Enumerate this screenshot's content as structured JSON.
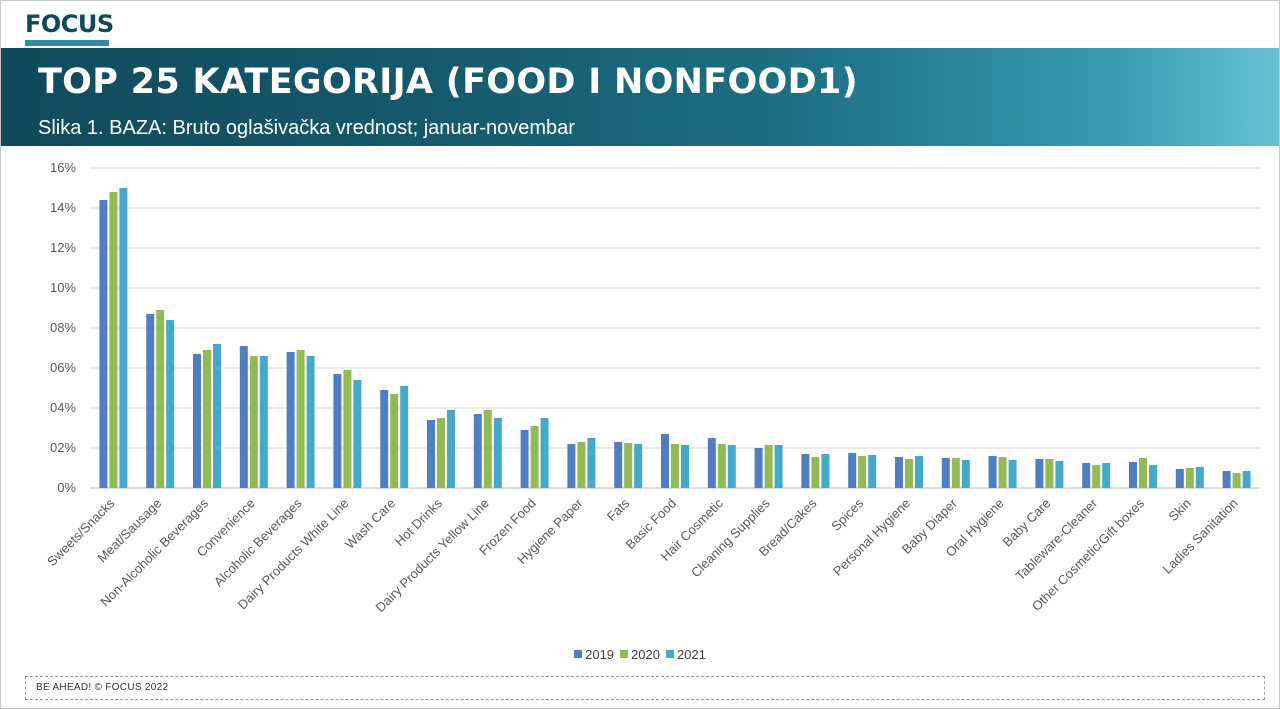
{
  "header": {
    "logo_text": "FOCUS",
    "title": "TOP 25 KATEGORIJA (FOOD I NONFOOD1)",
    "subtitle_prefix": "Slika 1.",
    "subtitle_rest": " BAZA: Bruto oglašivačka vrednost; januar-novembar"
  },
  "footer": {
    "text": "BE AHEAD! © FOCUS 2022"
  },
  "colors": {
    "2019": "#4f7fc1",
    "2020": "#93bb55",
    "2021": "#47a9c9",
    "grid": "#d9d9d9",
    "banner_dark": "#0f4a5b"
  },
  "chart_data": {
    "type": "bar",
    "ylim": [
      0,
      16
    ],
    "yticks": [
      "0%",
      "02%",
      "04%",
      "06%",
      "08%",
      "10%",
      "12%",
      "14%",
      "16%"
    ],
    "legend_position": "bottom",
    "grid": true,
    "categories": [
      "Sweets/Snacks",
      "Meat/Sausage",
      "Non-Alcoholic Beverages",
      "Convenience",
      "Alcoholic Beverages",
      "Dairy Products White Line",
      "Wash Care",
      "Hot Drinks",
      "Dairy Products Yellow Line",
      "Frozen Food",
      "Hygiene Paper",
      "Fats",
      "Basic Food",
      "Hair Cosmetic",
      "Cleaning Supplies",
      "Bread/Cakes",
      "Spices",
      "Personal Hygiene",
      "Baby Diaper",
      "Oral Hygiene",
      "Baby Care",
      "Tableware-Cleaner",
      "Other Cosmetic/Gift boxes",
      "Skin",
      "Ladies Sanitation"
    ],
    "series": [
      {
        "name": "2019",
        "values": [
          14.4,
          8.7,
          6.7,
          7.1,
          6.8,
          5.7,
          4.9,
          3.4,
          3.7,
          2.9,
          2.2,
          2.3,
          2.7,
          2.5,
          2.0,
          1.7,
          1.75,
          1.55,
          1.5,
          1.6,
          1.45,
          1.25,
          1.3,
          0.95,
          0.85
        ]
      },
      {
        "name": "2020",
        "values": [
          14.8,
          8.9,
          6.9,
          6.6,
          6.9,
          5.9,
          4.7,
          3.5,
          3.9,
          3.1,
          2.3,
          2.25,
          2.2,
          2.2,
          2.15,
          1.55,
          1.6,
          1.45,
          1.5,
          1.55,
          1.45,
          1.15,
          1.5,
          1.0,
          0.75
        ]
      },
      {
        "name": "2021",
        "values": [
          15.0,
          8.4,
          7.2,
          6.6,
          6.6,
          5.4,
          5.1,
          3.9,
          3.5,
          3.5,
          2.5,
          2.2,
          2.15,
          2.15,
          2.15,
          1.7,
          1.65,
          1.6,
          1.4,
          1.4,
          1.35,
          1.25,
          1.15,
          1.05,
          0.85
        ]
      }
    ]
  }
}
